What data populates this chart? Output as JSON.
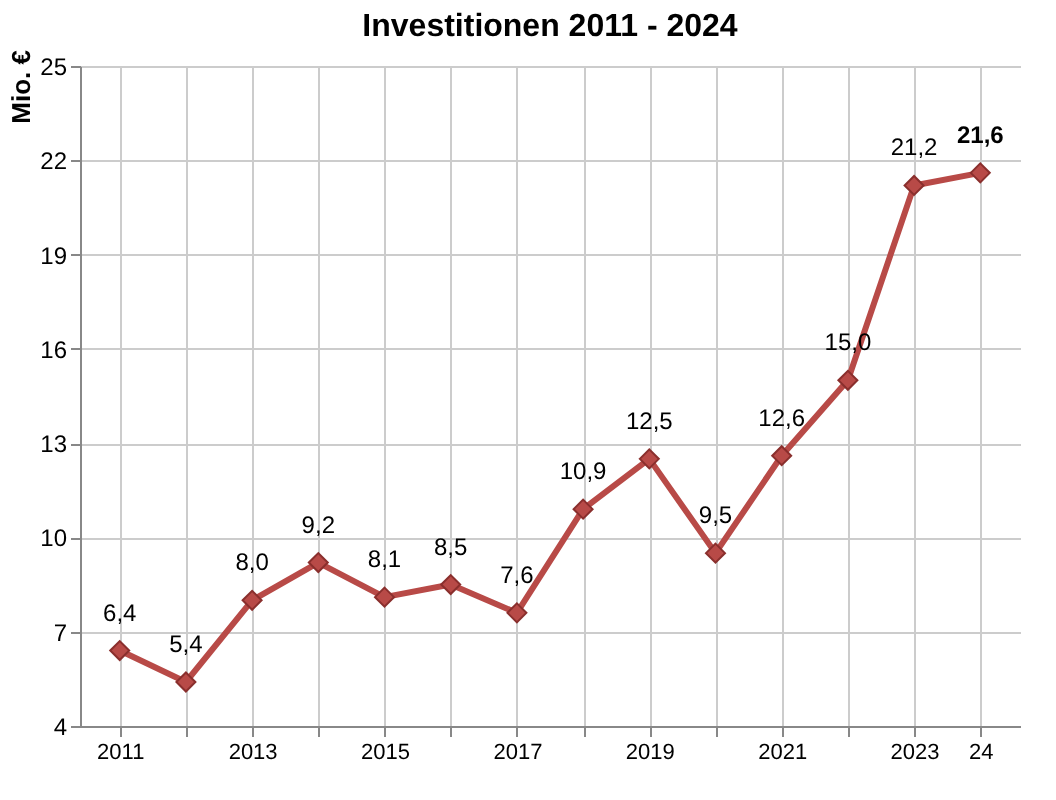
{
  "chart_data": {
    "type": "line",
    "title": "Investitionen 2011 - 2024",
    "ylabel": "Mio. €",
    "x": [
      2011,
      2012,
      2013,
      2014,
      2015,
      2016,
      2017,
      2018,
      2019,
      2020,
      2021,
      2022,
      2023,
      2024
    ],
    "series": [
      {
        "color": "#b84a47",
        "values": [
          6.4,
          5.4,
          8.0,
          9.2,
          8.1,
          8.5,
          7.6,
          10.9,
          12.5,
          9.5,
          12.6,
          15.0,
          21.2,
          21.6
        ],
        "value_labels": [
          "6,4",
          "5,4",
          "8,0",
          "9,2",
          "8,1",
          "8,5",
          "7,6",
          "10,9",
          "12,5",
          "9,5",
          "12,6",
          "15,0",
          "21,2",
          "21,6"
        ]
      }
    ],
    "xlim": [
      2010.4,
      2024.6
    ],
    "xticks": [
      2011,
      {
        "value": 2012,
        "label": null
      },
      2013,
      {
        "value": 2014,
        "label": null
      },
      2015,
      {
        "value": 2016,
        "label": null
      },
      2017,
      {
        "value": 2018,
        "label": null
      },
      2019,
      {
        "value": 2020,
        "label": null
      },
      2021,
      {
        "value": 2022,
        "label": null
      },
      2023,
      {
        "value": 2024,
        "label": "24"
      }
    ],
    "ylim": [
      4,
      25
    ],
    "yticks": [
      4,
      7,
      10,
      13,
      16,
      19,
      22,
      25
    ],
    "grid": true,
    "marker": "diamond",
    "line_style": "solid"
  }
}
